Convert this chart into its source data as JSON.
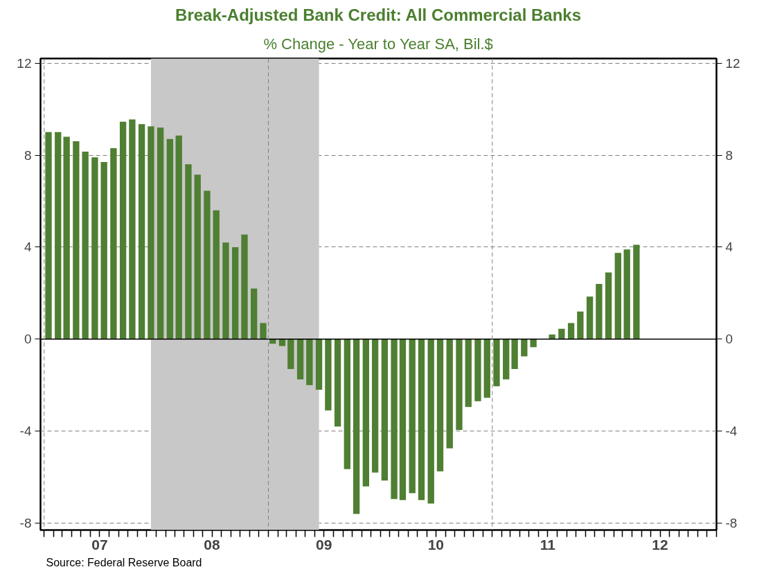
{
  "chart_data": {
    "type": "bar",
    "title": "Break-Adjusted Bank Credit: All Commercial Banks",
    "subtitle": "% Change - Year to Year SA, Bil.$",
    "x": [
      "2007-01-15",
      "2007-02-15",
      "2007-03-15",
      "2007-04-15",
      "2007-05-15",
      "2007-06-15",
      "2007-07-15",
      "2007-08-15",
      "2007-09-15",
      "2007-10-15",
      "2007-11-15",
      "2007-12-15",
      "2008-01-15",
      "2008-02-15",
      "2008-03-15",
      "2008-04-15",
      "2008-05-15",
      "2008-06-15",
      "2008-07-15",
      "2008-08-15",
      "2008-09-15",
      "2008-10-15",
      "2008-11-15",
      "2008-12-15",
      "2009-01-15",
      "2009-02-15",
      "2009-03-15",
      "2009-04-15",
      "2009-05-15",
      "2009-06-15",
      "2009-07-15",
      "2009-08-15",
      "2009-09-15",
      "2009-10-15",
      "2009-11-15",
      "2009-12-15",
      "2010-01-15",
      "2010-02-15",
      "2010-03-15",
      "2010-04-15",
      "2010-05-15",
      "2010-06-15",
      "2010-07-15",
      "2010-08-15",
      "2010-09-15",
      "2010-10-15",
      "2010-11-15",
      "2010-12-15",
      "2011-01-15",
      "2011-02-15",
      "2011-03-15",
      "2011-04-15",
      "2011-05-15",
      "2011-06-15",
      "2011-07-15",
      "2011-08-15",
      "2011-09-15",
      "2011-10-15",
      "2011-11-15",
      "2011-12-15",
      "2012-01-15",
      "2012-02-15",
      "2012-03-15",
      "2012-04-15"
    ],
    "series": [
      {
        "color": "#4f7f32",
        "values": [
          9.0,
          9.0,
          8.8,
          8.6,
          8.15,
          7.9,
          7.7,
          8.3,
          9.45,
          9.55,
          9.35,
          9.25,
          9.2,
          8.7,
          8.85,
          7.6,
          7.15,
          6.45,
          5.6,
          4.2,
          4.0,
          4.55,
          2.2,
          0.7,
          -0.2,
          -0.3,
          -1.3,
          -1.75,
          -2.0,
          -2.2,
          -3.1,
          -3.8,
          -5.65,
          -7.6,
          -6.4,
          -5.8,
          -6.15,
          -6.95,
          -7.0,
          -6.7,
          -7.0,
          -7.15,
          -5.75,
          -4.75,
          -3.95,
          -2.95,
          -2.7,
          -2.55,
          -2.05,
          -1.75,
          -1.3,
          -0.75,
          -0.35,
          0.0,
          0.2,
          0.45,
          0.7,
          1.2,
          1.85,
          2.4,
          2.9,
          3.75,
          3.9,
          4.1
        ]
      }
    ],
    "xlim": [
      "2006-12-20",
      "2013-01-01"
    ],
    "xticks": [
      {
        "value": "2007-01-01",
        "label": null
      },
      {
        "value": "2007-02-01",
        "label": null
      },
      {
        "value": "2007-03-01",
        "label": null
      },
      {
        "value": "2007-04-01",
        "label": null
      },
      {
        "value": "2007-05-01",
        "label": null
      },
      {
        "value": "2007-06-01",
        "label": null
      },
      {
        "value": "2007-07-01",
        "label": "07"
      },
      {
        "value": "2007-08-01",
        "label": null
      },
      {
        "value": "2007-09-01",
        "label": null
      },
      {
        "value": "2007-10-01",
        "label": null
      },
      {
        "value": "2007-11-01",
        "label": null
      },
      {
        "value": "2007-12-01",
        "label": null
      },
      {
        "value": "2008-01-01",
        "label": null
      },
      {
        "value": "2008-02-01",
        "label": null
      },
      {
        "value": "2008-03-01",
        "label": null
      },
      {
        "value": "2008-04-01",
        "label": null
      },
      {
        "value": "2008-05-01",
        "label": null
      },
      {
        "value": "2008-06-01",
        "label": null
      },
      {
        "value": "2008-07-01",
        "label": "08"
      },
      {
        "value": "2008-08-01",
        "label": null
      },
      {
        "value": "2008-09-01",
        "label": null
      },
      {
        "value": "2008-10-01",
        "label": null
      },
      {
        "value": "2008-11-01",
        "label": null
      },
      {
        "value": "2008-12-01",
        "label": null
      },
      {
        "value": "2009-01-01",
        "label": null
      },
      {
        "value": "2009-02-01",
        "label": null
      },
      {
        "value": "2009-03-01",
        "label": null
      },
      {
        "value": "2009-04-01",
        "label": null
      },
      {
        "value": "2009-05-01",
        "label": null
      },
      {
        "value": "2009-06-01",
        "label": null
      },
      {
        "value": "2009-07-01",
        "label": "09"
      },
      {
        "value": "2009-08-01",
        "label": null
      },
      {
        "value": "2009-09-01",
        "label": null
      },
      {
        "value": "2009-10-01",
        "label": null
      },
      {
        "value": "2009-11-01",
        "label": null
      },
      {
        "value": "2009-12-01",
        "label": null
      },
      {
        "value": "2010-01-01",
        "label": null
      },
      {
        "value": "2010-02-01",
        "label": null
      },
      {
        "value": "2010-03-01",
        "label": null
      },
      {
        "value": "2010-04-01",
        "label": null
      },
      {
        "value": "2010-05-01",
        "label": null
      },
      {
        "value": "2010-06-01",
        "label": null
      },
      {
        "value": "2010-07-01",
        "label": "10"
      },
      {
        "value": "2010-08-01",
        "label": null
      },
      {
        "value": "2010-09-01",
        "label": null
      },
      {
        "value": "2010-10-01",
        "label": null
      },
      {
        "value": "2010-11-01",
        "label": null
      },
      {
        "value": "2010-12-01",
        "label": null
      },
      {
        "value": "2011-01-01",
        "label": null
      },
      {
        "value": "2011-02-01",
        "label": null
      },
      {
        "value": "2011-03-01",
        "label": null
      },
      {
        "value": "2011-04-01",
        "label": null
      },
      {
        "value": "2011-05-01",
        "label": null
      },
      {
        "value": "2011-06-01",
        "label": null
      },
      {
        "value": "2011-07-01",
        "label": "11"
      },
      {
        "value": "2011-08-01",
        "label": null
      },
      {
        "value": "2011-09-01",
        "label": null
      },
      {
        "value": "2011-10-01",
        "label": null
      },
      {
        "value": "2011-11-01",
        "label": null
      },
      {
        "value": "2011-12-01",
        "label": null
      },
      {
        "value": "2012-01-01",
        "label": null
      },
      {
        "value": "2012-02-01",
        "label": null
      },
      {
        "value": "2012-03-01",
        "label": null
      },
      {
        "value": "2012-04-01",
        "label": null
      },
      {
        "value": "2012-05-01",
        "label": null
      },
      {
        "value": "2012-06-01",
        "label": null
      },
      {
        "value": "2012-07-01",
        "label": "12"
      },
      {
        "value": "2012-08-01",
        "label": null
      },
      {
        "value": "2012-09-01",
        "label": null
      },
      {
        "value": "2012-10-01",
        "label": null
      },
      {
        "value": "2012-11-01",
        "label": null
      },
      {
        "value": "2012-12-01",
        "label": null
      },
      {
        "value": "2013-01-01",
        "label": null
      }
    ],
    "ylim": [
      -8.3,
      12.2
    ],
    "yticks": [
      -8,
      -4,
      0,
      4,
      8,
      12
    ],
    "y2lim": [
      -8.3,
      12.2
    ],
    "y2ticks": [
      -8,
      -4,
      0,
      4,
      8,
      12
    ],
    "grid": "y",
    "ref_lines": [
      {
        "axis": "y",
        "value": 0,
        "color": "#000000",
        "line_style": "solid"
      },
      {
        "axis": "x",
        "value": "2007-01-01",
        "color": "#808080",
        "line_style": "dashed"
      },
      {
        "axis": "x",
        "value": "2009-01-01",
        "color": "#808080",
        "line_style": "dashed"
      },
      {
        "axis": "x",
        "value": "2011-01-01",
        "color": "#808080",
        "line_style": "dashed"
      }
    ],
    "bands": [
      {
        "axis": "x",
        "from": "2007-12-15",
        "to": "2009-06-15",
        "color": "#c8c8c8"
      }
    ],
    "annotations": [
      "Source: Federal Reserve Board"
    ]
  }
}
